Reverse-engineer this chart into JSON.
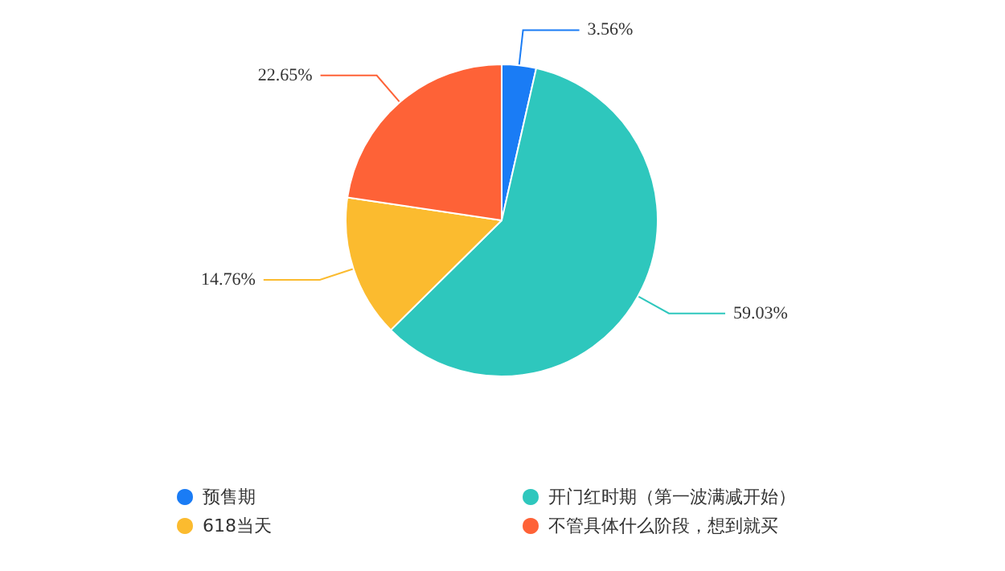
{
  "chart_data": {
    "type": "pie",
    "categories": [
      "预售期",
      "开门红时期（第一波满减开始）",
      "618当天",
      "不管具体什么阶段，想到就买"
    ],
    "values": [
      3.56,
      59.03,
      14.76,
      22.65
    ],
    "colors": [
      "#1a7cf5",
      "#2ec7bd",
      "#fbbb2f",
      "#fe6237"
    ],
    "value_labels": [
      "3.56%",
      "59.03%",
      "14.76%",
      "22.65%"
    ],
    "legend": "bottom"
  }
}
